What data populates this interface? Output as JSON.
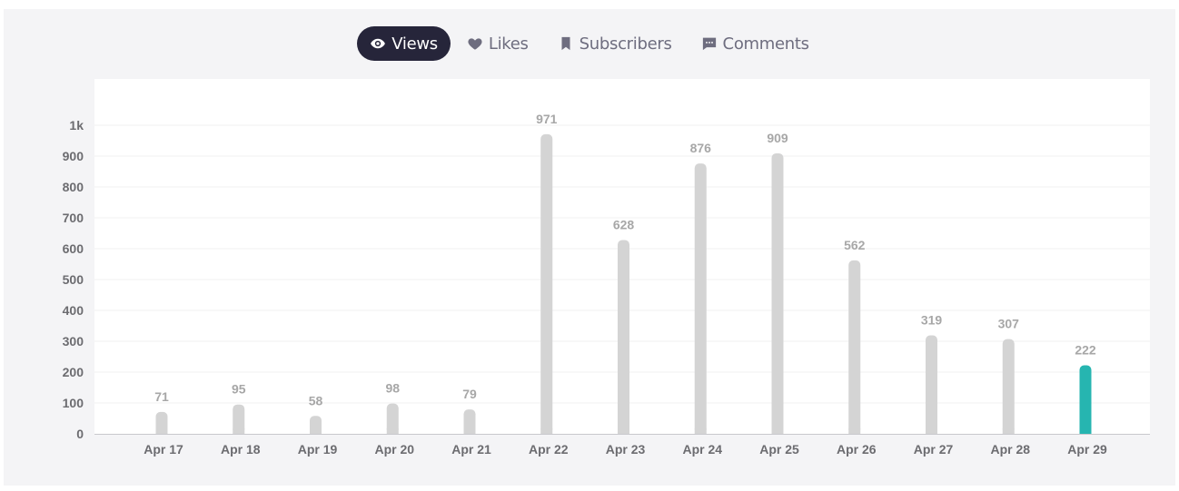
{
  "tabs": [
    {
      "label": "Views",
      "icon": "eye-icon",
      "active": true
    },
    {
      "label": "Likes",
      "icon": "heart-icon",
      "active": false
    },
    {
      "label": "Subscribers",
      "icon": "bookmark-icon",
      "active": false
    },
    {
      "label": "Comments",
      "icon": "comment-icon",
      "active": false
    }
  ],
  "colors": {
    "bar": "#d4d4d4",
    "highlight_bar": "#26b5b0",
    "active_tab_bg": "#26253a"
  },
  "chart_data": {
    "type": "bar",
    "categories": [
      "Apr 17",
      "Apr 18",
      "Apr 19",
      "Apr 20",
      "Apr 21",
      "Apr 22",
      "Apr 23",
      "Apr 24",
      "Apr 25",
      "Apr 26",
      "Apr 27",
      "Apr 28",
      "Apr 29"
    ],
    "values": [
      71,
      95,
      58,
      98,
      79,
      971,
      628,
      876,
      909,
      562,
      319,
      307,
      222
    ],
    "highlight_index": 12,
    "ylim": [
      0,
      1000
    ],
    "yticks": [
      0,
      100,
      200,
      300,
      400,
      500,
      600,
      700,
      800,
      900,
      1000
    ],
    "ytick_labels": [
      "0",
      "100",
      "200",
      "300",
      "400",
      "500",
      "600",
      "700",
      "800",
      "900",
      "1k"
    ],
    "title": "",
    "xlabel": "",
    "ylabel": "",
    "grid": true,
    "data_labels": true
  }
}
